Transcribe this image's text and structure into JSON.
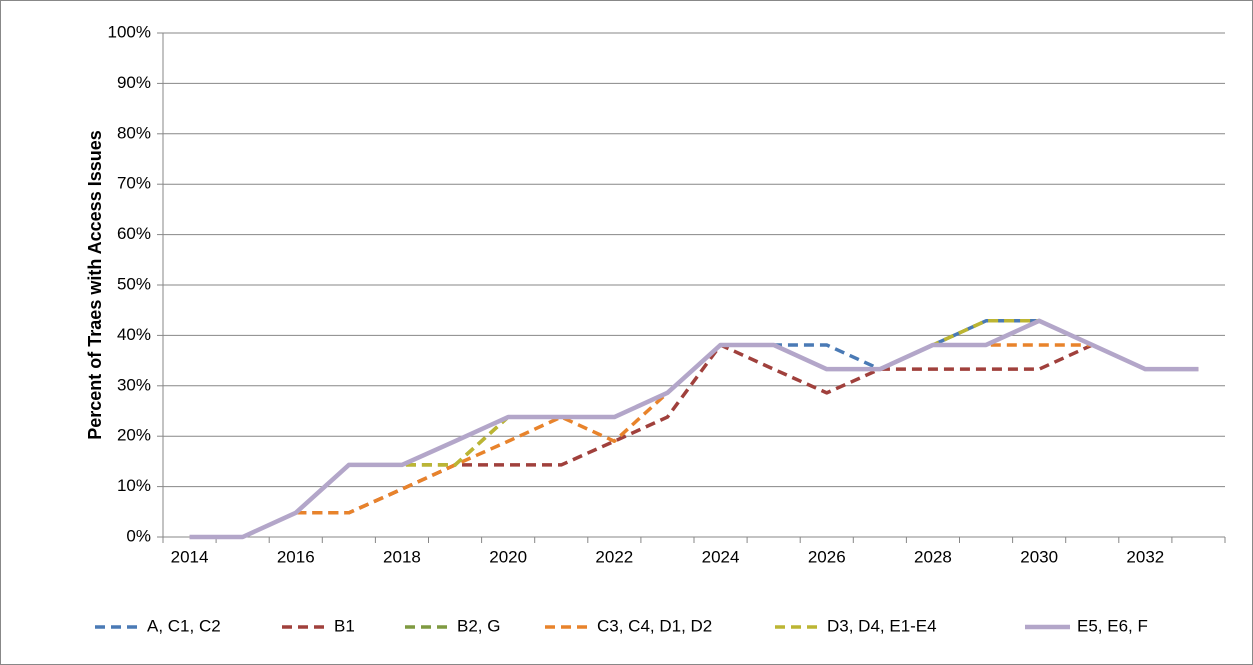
{
  "chart_data": {
    "type": "line",
    "y_label": "Percent of Traes with Access Issues",
    "categories": [
      "2014",
      null,
      "2016",
      null,
      "2018",
      null,
      "2020",
      null,
      "2022",
      null,
      "2024",
      null,
      "2026",
      null,
      "2028",
      null,
      "2030",
      null,
      "2032",
      null
    ],
    "ylim": [
      0,
      100
    ],
    "yticks": [
      {
        "value": 0,
        "label": "0%"
      },
      {
        "value": 10,
        "label": "10%"
      },
      {
        "value": 20,
        "label": "20%"
      },
      {
        "value": 30,
        "label": "30%"
      },
      {
        "value": 40,
        "label": "40%"
      },
      {
        "value": 50,
        "label": "50%"
      },
      {
        "value": 60,
        "label": "60%"
      },
      {
        "value": 70,
        "label": "70%"
      },
      {
        "value": 80,
        "label": "80%"
      },
      {
        "value": 90,
        "label": "90%"
      },
      {
        "value": 100,
        "label": "100%"
      }
    ],
    "grid": true,
    "legend": "bottom",
    "series": [
      {
        "name": "A, C1, C2",
        "color": "#4a7ab5",
        "dashed": true,
        "values": [
          0,
          0,
          4.8,
          14.3,
          14.3,
          19,
          23.8,
          23.8,
          23.8,
          28.6,
          38.1,
          38.1,
          38.1,
          33.3,
          38.1,
          42.9,
          42.9,
          38.1,
          33.3,
          33.3
        ]
      },
      {
        "name": "B1",
        "color": "#a0403c",
        "dashed": true,
        "values": [
          0,
          0,
          4.8,
          4.8,
          9.5,
          14.3,
          14.3,
          14.3,
          19,
          23.8,
          38.1,
          33.3,
          28.6,
          33.3,
          33.3,
          33.3,
          33.3,
          38.1,
          33.3,
          33.3
        ]
      },
      {
        "name": "B2, G",
        "color": "#7f9a41",
        "dashed": true,
        "values": [
          0,
          0,
          4.8,
          14.3,
          14.3,
          14.3,
          23.8,
          23.8,
          23.8,
          28.6,
          38.1,
          38.1,
          33.3,
          33.3,
          38.1,
          42.9,
          42.9,
          38.1,
          33.3,
          33.3
        ]
      },
      {
        "name": "C3, C4, D1, D2",
        "color": "#e8832b",
        "dashed": true,
        "values": [
          0,
          0,
          4.8,
          4.8,
          9.5,
          14.3,
          19,
          23.8,
          19,
          28.6,
          38.1,
          38.1,
          33.3,
          33.3,
          38.1,
          38.1,
          38.1,
          38.1,
          33.3,
          33.3
        ]
      },
      {
        "name": "D3, D4, E1-E4",
        "color": "#bcb533",
        "dashed": true,
        "values": [
          0,
          0,
          4.8,
          14.3,
          14.3,
          14.3,
          23.8,
          23.8,
          23.8,
          28.6,
          38.1,
          38.1,
          33.3,
          33.3,
          38.1,
          42.9,
          42.9,
          38.1,
          33.3,
          33.3
        ]
      },
      {
        "name": "E5, E6, F",
        "color": "#b3a6c9",
        "dashed": false,
        "values": [
          0,
          0,
          4.8,
          14.3,
          14.3,
          19,
          23.8,
          23.8,
          23.8,
          28.6,
          38.1,
          38.1,
          33.3,
          33.3,
          38.1,
          38.1,
          42.9,
          38.1,
          33.3,
          33.3
        ]
      }
    ]
  }
}
